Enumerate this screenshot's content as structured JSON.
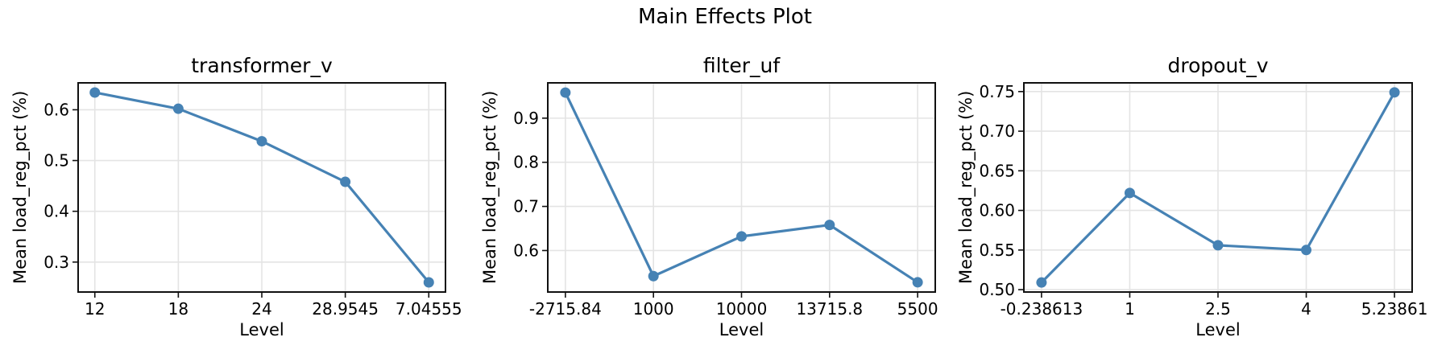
{
  "figure": {
    "suptitle": "Main Effects Plot",
    "accent_color": "#4682b4",
    "grid_color": "#e4e4e4",
    "spine_color": "#111111",
    "text_color": "#000000",
    "background_color": "#ffffff"
  },
  "chart_data": [
    {
      "type": "line",
      "title": "transformer_v",
      "xlabel": "Level",
      "ylabel": "Mean load_reg_pct (%)",
      "categories": [
        "12",
        "18",
        "24",
        "28.9545",
        "7.04555"
      ],
      "values": [
        0.634,
        0.602,
        0.538,
        0.458,
        0.26
      ],
      "yticks": [
        0.3,
        0.4,
        0.5,
        0.6
      ],
      "ytick_labels": [
        "0.3",
        "0.4",
        "0.5",
        "0.6"
      ],
      "ylim": [
        0.241,
        0.653
      ],
      "grid": true,
      "marker": "circle",
      "legend": "none"
    },
    {
      "type": "line",
      "title": "filter_uf",
      "xlabel": "Level",
      "ylabel": "Mean load_reg_pct (%)",
      "categories": [
        "-2715.84",
        "1000",
        "10000",
        "13715.8",
        "5500"
      ],
      "values": [
        0.958,
        0.542,
        0.632,
        0.658,
        0.528
      ],
      "yticks": [
        0.6,
        0.7,
        0.8,
        0.9
      ],
      "ytick_labels": [
        "0.6",
        "0.7",
        "0.8",
        "0.9"
      ],
      "ylim": [
        0.506,
        0.98
      ],
      "grid": true,
      "marker": "circle",
      "legend": "none"
    },
    {
      "type": "line",
      "title": "dropout_v",
      "xlabel": "Level",
      "ylabel": "Mean load_reg_pct (%)",
      "categories": [
        "-0.238613",
        "1",
        "2.5",
        "4",
        "5.23861"
      ],
      "values": [
        0.509,
        0.622,
        0.556,
        0.55,
        0.749
      ],
      "yticks": [
        0.5,
        0.55,
        0.6,
        0.65,
        0.7,
        0.75
      ],
      "ytick_labels": [
        "0.50",
        "0.55",
        "0.60",
        "0.65",
        "0.70",
        "0.75"
      ],
      "ylim": [
        0.497,
        0.761
      ],
      "grid": true,
      "marker": "circle",
      "legend": "none"
    }
  ]
}
